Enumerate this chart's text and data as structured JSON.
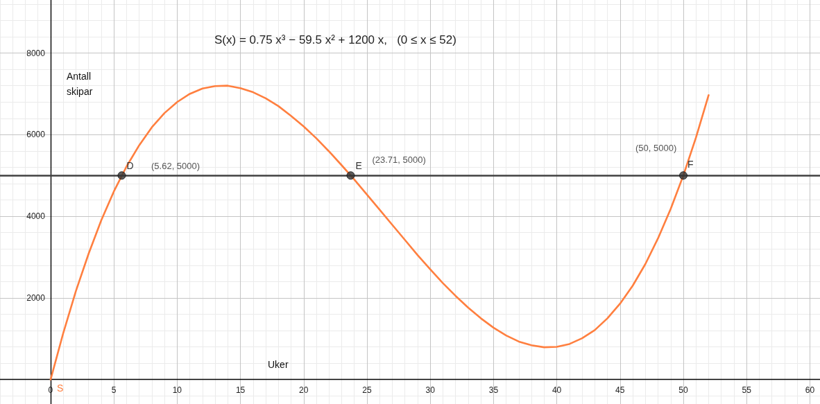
{
  "chart_data": {
    "type": "line",
    "title": "S(x) = 0.75 x³ − 59.5 x² + 1200 x,   (0 ≤ x ≤ 52)",
    "xlabel": "Uker",
    "ylabel": "Antall skipar",
    "xlim": [
      -4,
      60.8
    ],
    "ylim": [
      -600,
      9300
    ],
    "xticks": [
      0,
      5,
      10,
      15,
      20,
      25,
      30,
      35,
      40,
      45,
      50,
      55,
      60
    ],
    "yticks": [
      2000,
      4000,
      6000,
      8000
    ],
    "grid": true,
    "marker": "none",
    "line_style": "solid",
    "series": [
      {
        "name": "S",
        "color": "#ff7f3f",
        "x": [
          0,
          1,
          2,
          3,
          4,
          5,
          6,
          7,
          8,
          9,
          10,
          11,
          12,
          13,
          14,
          15,
          16,
          17,
          18,
          19,
          20,
          21,
          22,
          23,
          24,
          25,
          26,
          27,
          28,
          29,
          30,
          31,
          32,
          33,
          34,
          35,
          36,
          37,
          38,
          39,
          40,
          41,
          42,
          43,
          44,
          45,
          46,
          47,
          48,
          49,
          50,
          51,
          52
        ],
        "values": [
          0,
          1140,
          2170,
          3080,
          3900,
          4610,
          5220,
          5740,
          6180,
          6530,
          6800,
          7000,
          7130,
          7190,
          7200,
          7140,
          7040,
          6890,
          6700,
          6460,
          6200,
          5910,
          5590,
          5250,
          4900,
          4530,
          4160,
          3790,
          3420,
          3050,
          2700,
          2360,
          2050,
          1760,
          1500,
          1270,
          1080,
          930,
          840,
          790,
          800,
          870,
          1010,
          1210,
          1500,
          1860,
          2300,
          2830,
          3460,
          4180,
          5000,
          5930,
          6970
        ]
      },
      {
        "type": "scatter",
        "color": "#333333",
        "marker": "circle",
        "x": [
          5.62,
          23.71,
          50
        ],
        "values": [
          5000,
          5000,
          5000
        ]
      }
    ],
    "ref_lines": [
      {
        "axis": "y",
        "value": 5000,
        "color": "#404040"
      }
    ],
    "annotations": [
      {
        "text": "D",
        "x": 5.62,
        "y": 5000
      },
      "(5.62, 5000)",
      {
        "text": "E",
        "x": 23.71,
        "y": 5000
      },
      {
        "text": "(23.71, 5000)",
        "x": 23.71,
        "y": 5000
      },
      {
        "text": "F",
        "x": 50,
        "y": 5000
      },
      "(50, 5000)"
    ]
  }
}
